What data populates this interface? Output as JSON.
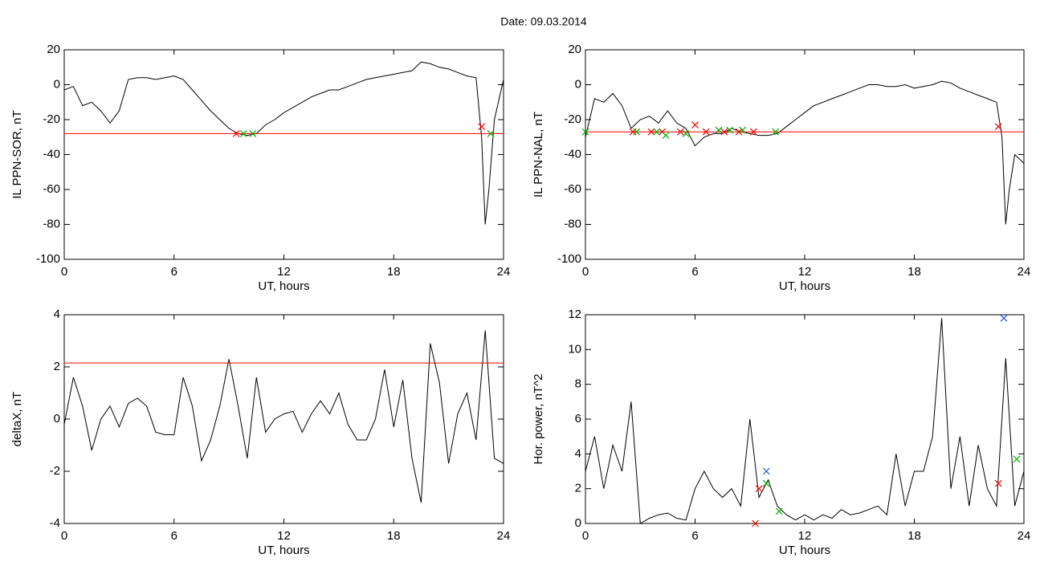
{
  "title": "Date:  09.03.2014",
  "chart_data": [
    {
      "type": "line",
      "ylabel": "IL PPN-SOR, nT",
      "xlabel": "UT, hours",
      "xlim": [
        0,
        24
      ],
      "xticks": [
        0,
        6,
        12,
        18,
        24
      ],
      "ylim": [
        -100,
        20
      ],
      "yticks": [
        -100,
        -80,
        -60,
        -40,
        -20,
        0,
        20
      ],
      "hline": -28,
      "hline_color": "#ff0000",
      "x": [
        0,
        0.5,
        1,
        1.5,
        2,
        2.5,
        3,
        3.5,
        4,
        4.5,
        5,
        5.5,
        6,
        6.5,
        7,
        7.5,
        8,
        8.5,
        9,
        9.5,
        10,
        10.5,
        11,
        11.5,
        12,
        12.5,
        13,
        13.5,
        14,
        14.5,
        15,
        15.5,
        16,
        16.5,
        17,
        17.5,
        18,
        18.5,
        19,
        19.5,
        20,
        20.5,
        21,
        21.5,
        22,
        22.5,
        22.8,
        23,
        23.2,
        23.5,
        24
      ],
      "series": [
        {
          "color": "#000000",
          "values": [
            -3,
            -1,
            -12,
            -10,
            -15,
            -22,
            -15,
            3,
            4,
            4,
            3,
            4,
            5,
            3,
            -3,
            -9,
            -15,
            -20,
            -25,
            -28,
            -29,
            -28,
            -23,
            -20,
            -16,
            -13,
            -10,
            -7,
            -5,
            -3,
            -3,
            -1,
            1,
            3,
            4,
            5,
            6,
            7,
            8,
            13,
            12,
            10,
            9,
            7,
            5,
            4,
            -30,
            -80,
            -60,
            -20,
            3
          ]
        }
      ],
      "markers": [
        {
          "color": "#ff0000",
          "x": [
            9.4,
            22.8
          ],
          "values": [
            -28,
            -24
          ]
        },
        {
          "color": "#00b000",
          "x": [
            9.8,
            10.3,
            23.3
          ],
          "values": [
            -28,
            -28,
            -28
          ]
        }
      ]
    },
    {
      "type": "line",
      "ylabel": "IL PPN-NAL, nT",
      "xlabel": "UT, hours",
      "xlim": [
        0,
        24
      ],
      "xticks": [
        0,
        6,
        12,
        18,
        24
      ],
      "ylim": [
        -100,
        20
      ],
      "yticks": [
        -100,
        -80,
        -60,
        -40,
        -20,
        0,
        20
      ],
      "hline": -27,
      "hline_color": "#ff0000",
      "x": [
        0,
        0.5,
        1,
        1.5,
        2,
        2.5,
        3,
        3.5,
        4,
        4.5,
        5,
        5.5,
        6,
        6.5,
        7,
        7.5,
        8,
        8.5,
        9,
        9.5,
        10,
        10.5,
        11,
        11.5,
        12,
        12.5,
        13,
        13.5,
        14,
        14.5,
        15,
        15.5,
        16,
        16.5,
        17,
        17.5,
        18,
        18.5,
        19,
        19.5,
        20,
        20.5,
        21,
        21.5,
        22,
        22.5,
        22.8,
        23,
        23.2,
        23.5,
        24
      ],
      "series": [
        {
          "color": "#000000",
          "values": [
            -30,
            -8,
            -10,
            -5,
            -12,
            -25,
            -20,
            -18,
            -22,
            -15,
            -22,
            -25,
            -35,
            -30,
            -28,
            -28,
            -25,
            -27,
            -28,
            -29,
            -29,
            -28,
            -24,
            -20,
            -16,
            -12,
            -10,
            -8,
            -6,
            -4,
            -2,
            0,
            0,
            -1,
            -1,
            0,
            -2,
            -1,
            0,
            2,
            1,
            -2,
            -4,
            -6,
            -8,
            -10,
            -30,
            -80,
            -60,
            -40,
            -45
          ]
        }
      ],
      "markers": [
        {
          "color": "#ff0000",
          "x": [
            2.6,
            3.6,
            4.2,
            5.2,
            6.0,
            6.6,
            7.6,
            8.4,
            9.2,
            22.6
          ],
          "values": [
            -27,
            -27,
            -27,
            -27,
            -23,
            -27,
            -27,
            -27,
            -27,
            -24
          ]
        },
        {
          "color": "#00b000",
          "x": [
            0,
            2.8,
            3.9,
            4.4,
            5.5,
            7.3,
            7.9,
            8.6,
            10.4
          ],
          "values": [
            -27,
            -27,
            -27,
            -29,
            -28,
            -26,
            -26,
            -26,
            -27
          ]
        }
      ]
    },
    {
      "type": "line",
      "ylabel": "deltaX, nT",
      "xlabel": "UT, hours",
      "xlim": [
        0,
        24
      ],
      "xticks": [
        0,
        6,
        12,
        18,
        24
      ],
      "ylim": [
        -4,
        4
      ],
      "yticks": [
        -4,
        -2,
        0,
        2,
        4
      ],
      "hline": 2.15,
      "hline_color": "#ff0000",
      "x": [
        0,
        0.5,
        1,
        1.5,
        2,
        2.5,
        3,
        3.5,
        4,
        4.5,
        5,
        5.5,
        6,
        6.5,
        7,
        7.5,
        8,
        8.5,
        9,
        9.5,
        10,
        10.5,
        11,
        11.5,
        12,
        12.5,
        13,
        13.5,
        14,
        14.5,
        15,
        15.5,
        16,
        16.5,
        17,
        17.5,
        18,
        18.5,
        19,
        19.5,
        20,
        20.5,
        21,
        21.5,
        22,
        22.5,
        23,
        23.5,
        24
      ],
      "series": [
        {
          "color": "#000000",
          "values": [
            -0.2,
            1.6,
            0.5,
            -1.2,
            0,
            0.5,
            -0.3,
            0.6,
            0.8,
            0.5,
            -0.5,
            -0.6,
            -0.6,
            1.6,
            0.5,
            -1.6,
            -0.8,
            0.5,
            2.3,
            0.5,
            -1.5,
            1.6,
            -0.5,
            0,
            0.2,
            0.3,
            -0.5,
            0.2,
            0.7,
            0.2,
            1,
            -0.2,
            -0.8,
            -0.8,
            0,
            1.9,
            -0.3,
            1.5,
            -1.5,
            -3.2,
            2.9,
            1.4,
            -1.7,
            0.2,
            1,
            -0.8,
            3.4,
            -1.5,
            -1.7
          ]
        }
      ],
      "markers": []
    },
    {
      "type": "line",
      "ylabel": "Hor. power, nT^2",
      "xlabel": "UT, hours",
      "xlim": [
        0,
        24
      ],
      "xticks": [
        0,
        6,
        12,
        18,
        24
      ],
      "ylim": [
        0,
        12
      ],
      "yticks": [
        0,
        2,
        4,
        6,
        8,
        10,
        12
      ],
      "x": [
        0,
        0.5,
        1,
        1.5,
        2,
        2.5,
        3,
        3.5,
        4,
        4.5,
        5,
        5.5,
        6,
        6.5,
        7,
        7.5,
        8,
        8.5,
        9,
        9.5,
        10,
        10.5,
        11,
        11.5,
        12,
        12.5,
        13,
        13.5,
        14,
        14.5,
        15,
        15.5,
        16,
        16.5,
        17,
        17.5,
        18,
        18.5,
        19,
        19.5,
        20,
        20.5,
        21,
        21.5,
        22,
        22.5,
        23,
        23.5,
        24
      ],
      "series": [
        {
          "color": "#000000",
          "values": [
            3,
            5,
            2,
            4.5,
            3,
            7,
            0,
            0.3,
            0.5,
            0.6,
            0.3,
            0.2,
            2,
            3,
            2,
            1.5,
            2,
            1,
            6,
            1.5,
            2.5,
            1,
            0.5,
            0.2,
            0.5,
            0.2,
            0.5,
            0.3,
            0.8,
            0.5,
            0.6,
            0.8,
            1,
            0.5,
            4,
            1,
            3,
            3,
            5,
            11.8,
            2,
            5,
            1,
            4.5,
            2,
            1,
            9.5,
            1,
            3
          ]
        }
      ],
      "markers": [
        {
          "color": "#ff0000",
          "x": [
            9.3,
            9.5,
            22.6
          ],
          "values": [
            0,
            2,
            2.3
          ]
        },
        {
          "color": "#00b000",
          "x": [
            9.9,
            10.6,
            23.6
          ],
          "values": [
            2.3,
            0.7,
            3.7
          ]
        },
        {
          "color": "#2050ff",
          "x": [
            9.9,
            22.9
          ],
          "values": [
            3,
            11.8
          ]
        }
      ]
    }
  ]
}
